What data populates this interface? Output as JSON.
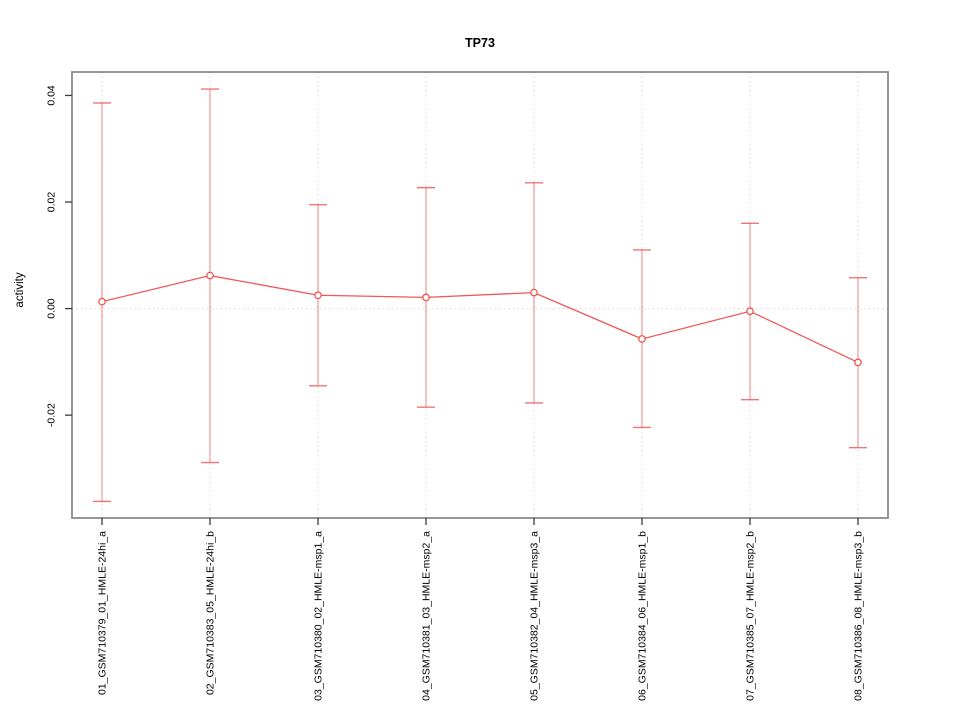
{
  "chart_data": {
    "type": "line",
    "title": "TP73",
    "ylabel": "activity",
    "xlabel": "",
    "marker": "open-circle",
    "error_bars": true,
    "categories": [
      "01_GSM710379_01_HMLE-24hi_a",
      "02_GSM710383_05_HMLE-24hi_b",
      "03_GSM710380_02_HMLE-msp1_a",
      "04_GSM710381_03_HMLE-msp2_a",
      "05_GSM710382_04_HMLE-msp3_a",
      "06_GSM710384_06_HMLE-msp1_b",
      "07_GSM710385_07_HMLE-msp2_b",
      "08_GSM710386_08_HMLE-msp3_b"
    ],
    "series": [
      {
        "name": "TP73 activity",
        "values": [
          0.0013,
          0.0062,
          0.0025,
          0.0021,
          0.003,
          -0.0057,
          -0.0005,
          -0.0101
        ],
        "upper": [
          0.0386,
          0.0412,
          0.0195,
          0.0227,
          0.0236,
          0.011,
          0.016,
          0.0058
        ],
        "lower": [
          -0.0362,
          -0.0289,
          -0.0145,
          -0.0185,
          -0.0177,
          -0.0223,
          -0.0171,
          -0.0261
        ]
      }
    ],
    "ylim": [
      -0.0393,
      0.0444
    ],
    "yticks": [
      {
        "value": -0.02,
        "label": "-0.02"
      },
      {
        "value": 0.0,
        "label": "0.00"
      },
      {
        "value": 0.02,
        "label": "0.02"
      },
      {
        "value": 0.04,
        "label": "0.04"
      }
    ],
    "grid": {
      "vertical_dotted_per_category": true,
      "horizontal_dotted_at_zero": true
    },
    "legend": {
      "visible": false
    },
    "colors": {
      "series_red": "#ee4543",
      "error_bar_red": "#ee4543",
      "grid_gray": "#dcdcdc",
      "zero_line_gray": "#d6d6d6",
      "frame_gray": "#858585",
      "tick_dark": "#3c3c3c",
      "text_black": "#000000",
      "background": "#ffffff"
    }
  }
}
